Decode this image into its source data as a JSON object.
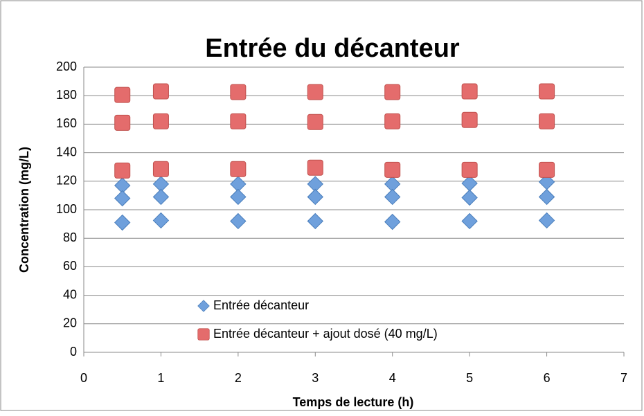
{
  "chart_data": {
    "type": "scatter",
    "title": "Entrée du décanteur",
    "xlabel": "Temps de lecture (h)",
    "ylabel": "Concentration (mg/L)",
    "xlim": [
      0,
      7
    ],
    "xticks": [
      0,
      1,
      2,
      3,
      4,
      5,
      6,
      7
    ],
    "ylim": [
      0,
      200
    ],
    "yticks": [
      0,
      20,
      40,
      60,
      80,
      100,
      120,
      140,
      160,
      180,
      200
    ],
    "grid": true,
    "legend": "bottom",
    "series": [
      {
        "name": "Entrée décanteur",
        "color": "#6fa0dc",
        "marker": "diamond",
        "x": [
          0.5,
          0.5,
          0.5,
          1,
          1,
          1,
          2,
          2,
          2,
          3,
          3,
          3,
          4,
          4,
          4,
          5,
          5,
          5,
          6,
          6,
          6
        ],
        "values": [
          117,
          108,
          91,
          118,
          109,
          92.5,
          118,
          109,
          92,
          118,
          109,
          92,
          118,
          109,
          91.5,
          118.5,
          108.5,
          92,
          119.5,
          109,
          92.5
        ]
      },
      {
        "name": "Entrée décanteur + ajout dosé (40 mg/L)",
        "color": "#e46c6c",
        "marker": "square",
        "x": [
          0.5,
          0.5,
          0.5,
          1,
          1,
          1,
          2,
          2,
          2,
          3,
          3,
          3,
          4,
          4,
          4,
          5,
          5,
          5,
          6,
          6,
          6
        ],
        "values": [
          180.5,
          161,
          127.5,
          183,
          162,
          128.5,
          182.5,
          162,
          128.5,
          182.5,
          161.5,
          129.5,
          182.5,
          162,
          128,
          183,
          163,
          128,
          183,
          162,
          128
        ]
      }
    ]
  }
}
